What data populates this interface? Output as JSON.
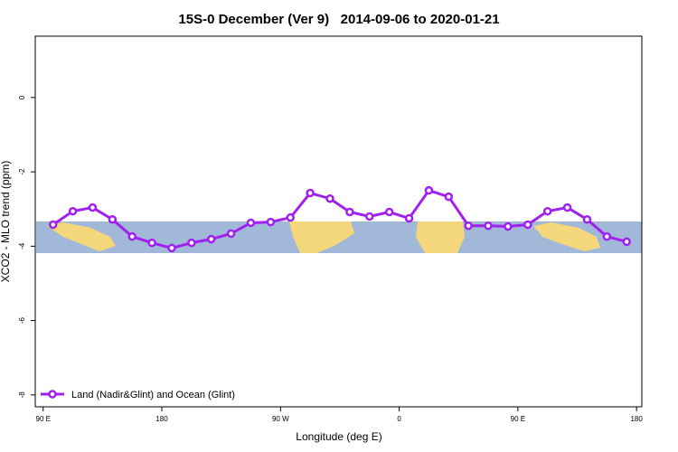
{
  "chart_data": {
    "type": "line",
    "title": "15S-0 December (Ver 9)   2014-09-06 to 2020-01-21",
    "x_label": "Longitude (deg E)",
    "y_label": "XCO2 - MLO trend (ppm)",
    "xlim": [
      84,
      544
    ],
    "ylim": [
      -8.32,
      1.65
    ],
    "xticks": [
      {
        "value": 90,
        "label": "90 E"
      },
      {
        "value": 180,
        "label": "180"
      },
      {
        "value": 270,
        "label": "90 W"
      },
      {
        "value": 360,
        "label": "0"
      },
      {
        "value": 450,
        "label": "90 E"
      },
      {
        "value": 540,
        "label": "180"
      }
    ],
    "yticks": [
      0,
      -2,
      -4,
      -6,
      -8
    ],
    "legend": "bottom left",
    "series": [
      {
        "name": "Land (Nadir&Glint) and Ocean (Glint)",
        "color": "#a020f0",
        "x": [
          97.5,
          112.5,
          127.5,
          142.5,
          157.5,
          172.5,
          187.5,
          202.5,
          217.5,
          232.5,
          247.5,
          262.5,
          277.5,
          292.5,
          307.5,
          322.5,
          337.5,
          352.5,
          367.5,
          382.5,
          397.5,
          412.5,
          427.5,
          442.5,
          457.5,
          472.5,
          487.5,
          502.5,
          517.5,
          532.5
        ],
        "values": [
          -3.42,
          -3.06,
          -2.96,
          -3.28,
          -3.74,
          -3.91,
          -4.05,
          -3.91,
          -3.81,
          -3.66,
          -3.37,
          -3.35,
          -3.23,
          -2.57,
          -2.72,
          -3.08,
          -3.2,
          -3.08,
          -3.25,
          -2.5,
          -2.67,
          -3.45,
          -3.45,
          -3.47,
          -3.42,
          -3.06,
          -2.96,
          -3.28,
          -3.74,
          -3.88
        ]
      }
    ]
  }
}
